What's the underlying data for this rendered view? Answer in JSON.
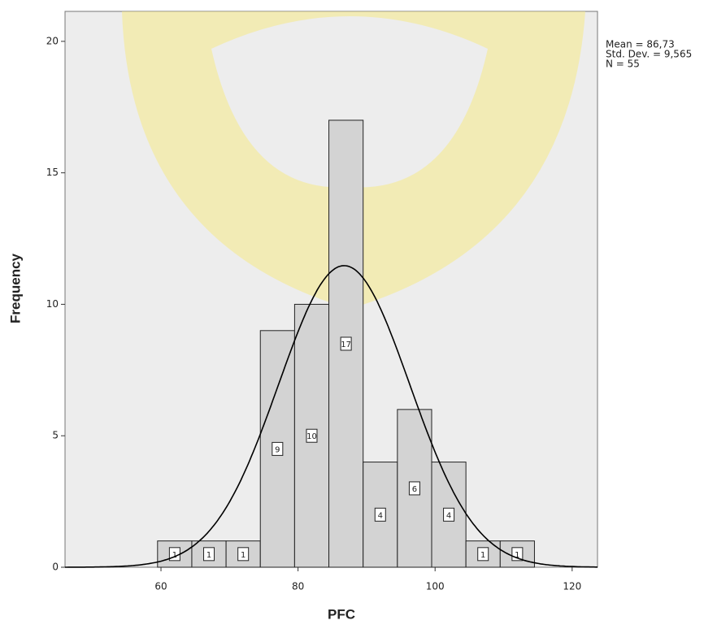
{
  "chart_data": {
    "type": "histogram",
    "x_label": "PFC",
    "y_label": "Frequency",
    "bins": [
      59.5,
      64.5,
      69.5,
      74.5,
      79.5,
      84.5,
      89.5,
      94.5,
      99.5,
      104.5,
      109.5,
      114.5
    ],
    "counts": [
      1,
      1,
      1,
      9,
      10,
      17,
      4,
      6,
      4,
      1,
      1
    ],
    "color": "#d3d3d3",
    "xlim": [
      46,
      123.7
    ],
    "xticks": [
      60,
      80,
      100,
      120
    ],
    "ylim": [
      0,
      21.14
    ],
    "yticks": [
      0,
      5,
      10,
      15,
      20
    ],
    "stats": [
      {
        "value": 86.73,
        "label": "Mean = 86,73"
      },
      {
        "value": 9.565,
        "label": "Std. Dev. = 9,565"
      },
      {
        "value": 55,
        "label": "N = 55"
      }
    ],
    "normal_curve": true
  }
}
